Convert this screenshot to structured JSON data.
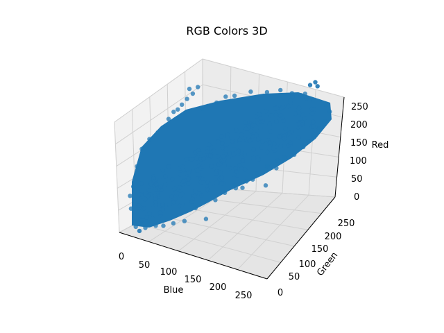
{
  "chart_data": {
    "type": "scatter",
    "projection": "3d",
    "title": "RGB Colors 3D",
    "xlabel": "Blue",
    "ylabel": "Green",
    "zlabel": "Red",
    "x_ticks": [
      "0",
      "50",
      "100",
      "150",
      "200",
      "250"
    ],
    "y_ticks": [
      "0",
      "50",
      "100",
      "150",
      "200",
      "250"
    ],
    "z_ticks": [
      "0",
      "50",
      "100",
      "150",
      "200",
      "250"
    ],
    "xlim": [
      0,
      255
    ],
    "ylim": [
      0,
      255
    ],
    "zlim": [
      0,
      255
    ],
    "grid": true,
    "marker_color": "#1f77b4",
    "series": [
      {
        "description": "dense cloud of pixel colors",
        "points": [
          {
            "b": 5,
            "g": 10,
            "r": 5
          },
          {
            "b": 20,
            "g": 20,
            "r": 15
          },
          {
            "b": 40,
            "g": 40,
            "r": 35
          },
          {
            "b": 60,
            "g": 60,
            "r": 55
          },
          {
            "b": 80,
            "g": 80,
            "r": 75
          },
          {
            "b": 100,
            "g": 100,
            "r": 95
          },
          {
            "b": 120,
            "g": 120,
            "r": 115
          },
          {
            "b": 140,
            "g": 140,
            "r": 135
          },
          {
            "b": 160,
            "g": 160,
            "r": 155
          },
          {
            "b": 180,
            "g": 180,
            "r": 175
          },
          {
            "b": 200,
            "g": 200,
            "r": 195
          },
          {
            "b": 220,
            "g": 220,
            "r": 215
          },
          {
            "b": 240,
            "g": 240,
            "r": 235
          },
          {
            "b": 255,
            "g": 255,
            "r": 250
          }
        ]
      }
    ]
  }
}
